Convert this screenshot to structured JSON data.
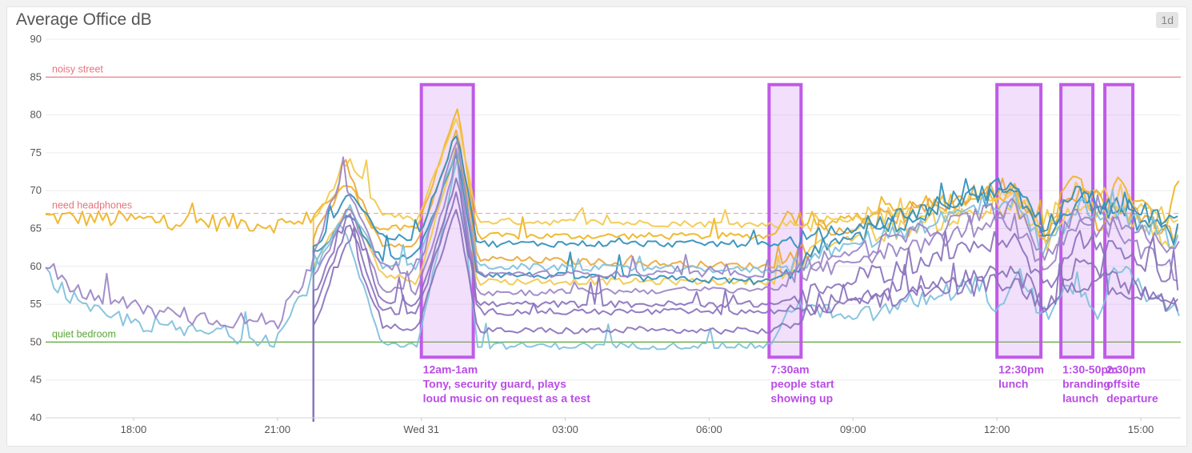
{
  "panel": {
    "title": "Average Office dB",
    "time_range": "1d"
  },
  "chart_data": {
    "type": "line",
    "title": "Average Office dB",
    "xlabel": "",
    "ylabel": "",
    "x_range": [
      "16:10",
      "15:50"
    ],
    "x_ticks": [
      {
        "label": "18:00",
        "t": "18:00"
      },
      {
        "label": "21:00",
        "t": "21:00"
      },
      {
        "label": "Wed 31",
        "t": "00:00"
      },
      {
        "label": "03:00",
        "t": "03:00"
      },
      {
        "label": "06:00",
        "t": "06:00"
      },
      {
        "label": "09:00",
        "t": "09:00"
      },
      {
        "label": "12:00",
        "t": "12:00"
      },
      {
        "label": "15:00",
        "t": "15:00"
      }
    ],
    "ylim": [
      40,
      90
    ],
    "y_ticks": [
      40,
      45,
      50,
      55,
      60,
      65,
      70,
      75,
      80,
      85,
      90
    ],
    "grid": true,
    "reference_lines": [
      {
        "label": "noisy street",
        "value": 85,
        "color": "#e8747c",
        "dashed": false
      },
      {
        "label": "need headphones",
        "value": 67,
        "color": "#f4a2a6",
        "dashed": true
      },
      {
        "label": "quiet bedroom",
        "value": 50,
        "color": "#5aa636",
        "dashed": false
      }
    ],
    "annotations": [
      {
        "start": "00:00",
        "end": "01:05",
        "lines": [
          "12am-1am",
          "Tony, security guard, plays",
          "loud music on request as a test"
        ]
      },
      {
        "start": "07:15",
        "end": "07:55",
        "lines": [
          "7:30am",
          "people start",
          "showing up"
        ]
      },
      {
        "start": "12:00",
        "end": "12:55",
        "lines": [
          "12:30pm",
          "lunch"
        ]
      },
      {
        "start": "13:20",
        "end": "14:00",
        "lines": [
          "1:30-50pm",
          "branding",
          "launch"
        ]
      },
      {
        "start": "14:15",
        "end": "14:50",
        "lines": [
          "2:30pm",
          "offsite",
          "departure"
        ]
      }
    ],
    "series": [
      {
        "color": "#f0b323",
        "start": "16:10",
        "levels": [
          {
            "t": "16:10",
            "v": 66.5
          },
          {
            "t": "21:30",
            "v": 65.5
          },
          {
            "t": "21:45",
            "v": 67
          },
          {
            "t": "22:30",
            "v": 71
          },
          {
            "t": "23:00",
            "v": 65
          },
          {
            "t": "23:55",
            "v": 65
          },
          {
            "t": "00:45",
            "v": 81
          },
          {
            "t": "01:10",
            "v": 64
          },
          {
            "t": "07:20",
            "v": 64
          },
          {
            "t": "07:35",
            "v": 67
          },
          {
            "t": "08:30",
            "v": 66
          },
          {
            "t": "12:20",
            "v": 70
          },
          {
            "t": "13:00",
            "v": 65
          },
          {
            "t": "13:40",
            "v": 72
          },
          {
            "t": "14:10",
            "v": 65
          },
          {
            "t": "14:30",
            "v": 71
          },
          {
            "t": "15:30",
            "v": 65
          },
          {
            "t": "15:45",
            "v": 72
          }
        ]
      },
      {
        "color": "#f2c94c",
        "start": "21:45",
        "levels": [
          {
            "t": "21:45",
            "v": 66
          },
          {
            "t": "22:30",
            "v": 74
          },
          {
            "t": "23:10",
            "v": 67
          },
          {
            "t": "23:55",
            "v": 66
          },
          {
            "t": "00:45",
            "v": 80
          },
          {
            "t": "01:10",
            "v": 66
          },
          {
            "t": "07:20",
            "v": 65.5
          },
          {
            "t": "08:30",
            "v": 66
          },
          {
            "t": "12:20",
            "v": 69
          },
          {
            "t": "13:00",
            "v": 66
          },
          {
            "t": "13:40",
            "v": 70
          },
          {
            "t": "14:30",
            "v": 69
          },
          {
            "t": "15:45",
            "v": 66
          }
        ]
      },
      {
        "color": "#e9a83a",
        "start": "21:45",
        "levels": [
          {
            "t": "21:45",
            "v": 64
          },
          {
            "t": "22:30",
            "v": 72
          },
          {
            "t": "23:10",
            "v": 63
          },
          {
            "t": "23:55",
            "v": 63
          },
          {
            "t": "00:45",
            "v": 78
          },
          {
            "t": "01:10",
            "v": 61
          },
          {
            "t": "07:20",
            "v": 60
          },
          {
            "t": "08:30",
            "v": 64
          },
          {
            "t": "12:20",
            "v": 71
          },
          {
            "t": "13:00",
            "v": 64
          },
          {
            "t": "13:40",
            "v": 70
          },
          {
            "t": "14:30",
            "v": 68
          },
          {
            "t": "15:45",
            "v": 64
          }
        ]
      },
      {
        "color": "#f2c94c",
        "start": "21:45",
        "levels": [
          {
            "t": "21:45",
            "v": 60
          },
          {
            "t": "22:30",
            "v": 68
          },
          {
            "t": "23:10",
            "v": 59
          },
          {
            "t": "23:55",
            "v": 58
          },
          {
            "t": "00:45",
            "v": 76
          },
          {
            "t": "01:10",
            "v": 58
          },
          {
            "t": "07:20",
            "v": 58
          },
          {
            "t": "08:30",
            "v": 63
          },
          {
            "t": "12:20",
            "v": 68
          },
          {
            "t": "13:00",
            "v": 63
          },
          {
            "t": "13:40",
            "v": 68
          },
          {
            "t": "14:30",
            "v": 67
          },
          {
            "t": "15:45",
            "v": 63
          }
        ]
      },
      {
        "color": "#2f8fbd",
        "start": "21:45",
        "levels": [
          {
            "t": "21:45",
            "v": 62
          },
          {
            "t": "22:30",
            "v": 70
          },
          {
            "t": "23:10",
            "v": 64
          },
          {
            "t": "23:55",
            "v": 63.5
          },
          {
            "t": "00:45",
            "v": 78
          },
          {
            "t": "01:10",
            "v": 63
          },
          {
            "t": "07:20",
            "v": 63
          },
          {
            "t": "08:30",
            "v": 64
          },
          {
            "t": "12:20",
            "v": 71
          },
          {
            "t": "13:00",
            "v": 65
          },
          {
            "t": "13:40",
            "v": 70
          },
          {
            "t": "14:30",
            "v": 68
          },
          {
            "t": "15:45",
            "v": 66
          }
        ]
      },
      {
        "color": "#2f8fbd",
        "start": "21:45",
        "levels": [
          {
            "t": "21:45",
            "v": 61
          },
          {
            "t": "22:30",
            "v": 67
          },
          {
            "t": "23:10",
            "v": 61
          },
          {
            "t": "23:55",
            "v": 61.5
          },
          {
            "t": "00:45",
            "v": 75
          },
          {
            "t": "01:10",
            "v": 59
          },
          {
            "t": "07:20",
            "v": 58
          },
          {
            "t": "08:30",
            "v": 63
          },
          {
            "t": "12:20",
            "v": 70
          },
          {
            "t": "13:00",
            "v": 64
          },
          {
            "t": "13:40",
            "v": 69
          },
          {
            "t": "14:30",
            "v": 67
          },
          {
            "t": "15:45",
            "v": 64
          }
        ]
      },
      {
        "color": "#7fc0dc",
        "start": "16:10",
        "levels": [
          {
            "t": "16:10",
            "v": 59
          },
          {
            "t": "17:00",
            "v": 54
          },
          {
            "t": "19:00",
            "v": 51.5
          },
          {
            "t": "21:00",
            "v": 50.5
          },
          {
            "t": "21:40",
            "v": 58
          },
          {
            "t": "22:20",
            "v": 66
          },
          {
            "t": "23:10",
            "v": 50
          },
          {
            "t": "23:55",
            "v": 49.5
          },
          {
            "t": "00:45",
            "v": 74
          },
          {
            "t": "01:10",
            "v": 49.5
          },
          {
            "t": "07:20",
            "v": 49.5
          },
          {
            "t": "07:40",
            "v": 55
          },
          {
            "t": "09:00",
            "v": 53
          },
          {
            "t": "11:40",
            "v": 58
          },
          {
            "t": "12:00",
            "v": 53
          },
          {
            "t": "12:30",
            "v": 59
          },
          {
            "t": "12:55",
            "v": 53
          },
          {
            "t": "13:40",
            "v": 58
          },
          {
            "t": "14:10",
            "v": 53
          },
          {
            "t": "14:30",
            "v": 60
          },
          {
            "t": "15:45",
            "v": 53
          }
        ]
      },
      {
        "color": "#7fc0dc",
        "start": "21:45",
        "levels": [
          {
            "t": "21:45",
            "v": 60
          },
          {
            "t": "22:30",
            "v": 68
          },
          {
            "t": "23:10",
            "v": 60
          },
          {
            "t": "23:55",
            "v": 60
          },
          {
            "t": "00:45",
            "v": 76
          },
          {
            "t": "01:10",
            "v": 60
          },
          {
            "t": "07:20",
            "v": 59.5
          },
          {
            "t": "08:30",
            "v": 62
          },
          {
            "t": "12:20",
            "v": 69
          },
          {
            "t": "13:00",
            "v": 62
          },
          {
            "t": "13:40",
            "v": 68
          },
          {
            "t": "14:30",
            "v": 67
          },
          {
            "t": "15:45",
            "v": 63
          }
        ]
      },
      {
        "color": "#9b86c6",
        "start": "16:10",
        "levels": [
          {
            "t": "16:10",
            "v": 60
          },
          {
            "t": "17:00",
            "v": 56
          },
          {
            "t": "19:00",
            "v": 53.5
          },
          {
            "t": "21:00",
            "v": 52.5
          },
          {
            "t": "21:40",
            "v": 60
          },
          {
            "t": "22:20",
            "v": 72
          },
          {
            "t": "23:10",
            "v": 60
          },
          {
            "t": "23:55",
            "v": 59
          },
          {
            "t": "00:45",
            "v": 77
          },
          {
            "t": "01:10",
            "v": 59
          },
          {
            "t": "07:20",
            "v": 59
          },
          {
            "t": "08:30",
            "v": 61
          },
          {
            "t": "12:20",
            "v": 68
          },
          {
            "t": "13:00",
            "v": 61
          },
          {
            "t": "13:40",
            "v": 67
          },
          {
            "t": "14:30",
            "v": 66
          },
          {
            "t": "15:45",
            "v": 62
          }
        ]
      },
      {
        "color": "#9b86c6",
        "start": "21:45",
        "levels": [
          {
            "t": "21:45",
            "v": 58
          },
          {
            "t": "22:30",
            "v": 68
          },
          {
            "t": "23:10",
            "v": 57
          },
          {
            "t": "23:55",
            "v": 56.5
          },
          {
            "t": "00:45",
            "v": 74
          },
          {
            "t": "01:10",
            "v": 56.5
          },
          {
            "t": "07:20",
            "v": 57
          },
          {
            "t": "08:30",
            "v": 60
          },
          {
            "t": "12:20",
            "v": 66
          },
          {
            "t": "13:00",
            "v": 60
          },
          {
            "t": "13:40",
            "v": 66
          },
          {
            "t": "14:30",
            "v": 64
          },
          {
            "t": "15:45",
            "v": 59
          }
        ]
      },
      {
        "color": "#8a72bd",
        "start": "21:45",
        "levels": [
          {
            "t": "21:45",
            "v": 56
          },
          {
            "t": "22:30",
            "v": 67
          },
          {
            "t": "23:10",
            "v": 55.5
          },
          {
            "t": "23:55",
            "v": 55
          },
          {
            "t": "00:45",
            "v": 72
          },
          {
            "t": "01:10",
            "v": 55
          },
          {
            "t": "07:20",
            "v": 55
          },
          {
            "t": "08:30",
            "v": 57
          },
          {
            "t": "12:20",
            "v": 64
          },
          {
            "t": "13:00",
            "v": 57
          },
          {
            "t": "13:40",
            "v": 64
          },
          {
            "t": "14:30",
            "v": 62
          },
          {
            "t": "15:45",
            "v": 58
          }
        ]
      },
      {
        "color": "#8a72bd",
        "start": "21:45",
        "levels": [
          {
            "t": "21:45",
            "v": 54
          },
          {
            "t": "22:30",
            "v": 66
          },
          {
            "t": "23:10",
            "v": 54
          },
          {
            "t": "23:55",
            "v": 54
          },
          {
            "t": "00:45",
            "v": 70
          },
          {
            "t": "01:10",
            "v": 54
          },
          {
            "t": "07:20",
            "v": 54
          },
          {
            "t": "08:30",
            "v": 55
          },
          {
            "t": "12:20",
            "v": 60
          },
          {
            "t": "13:00",
            "v": 55
          },
          {
            "t": "13:40",
            "v": 60
          },
          {
            "t": "14:30",
            "v": 58
          },
          {
            "t": "15:45",
            "v": 55
          }
        ]
      },
      {
        "color": "#8a72bd",
        "start": "21:45",
        "levels": [
          {
            "t": "21:45",
            "v": 52
          },
          {
            "t": "22:30",
            "v": 64
          },
          {
            "t": "23:10",
            "v": 52
          },
          {
            "t": "23:55",
            "v": 52
          },
          {
            "t": "00:45",
            "v": 68
          },
          {
            "t": "01:10",
            "v": 51.5
          },
          {
            "t": "07:20",
            "v": 51.5
          },
          {
            "t": "08:30",
            "v": 55
          },
          {
            "t": "12:20",
            "v": 58
          },
          {
            "t": "13:00",
            "v": 55
          },
          {
            "t": "13:40",
            "v": 58
          },
          {
            "t": "14:30",
            "v": 57
          },
          {
            "t": "15:45",
            "v": 55
          }
        ]
      }
    ]
  }
}
